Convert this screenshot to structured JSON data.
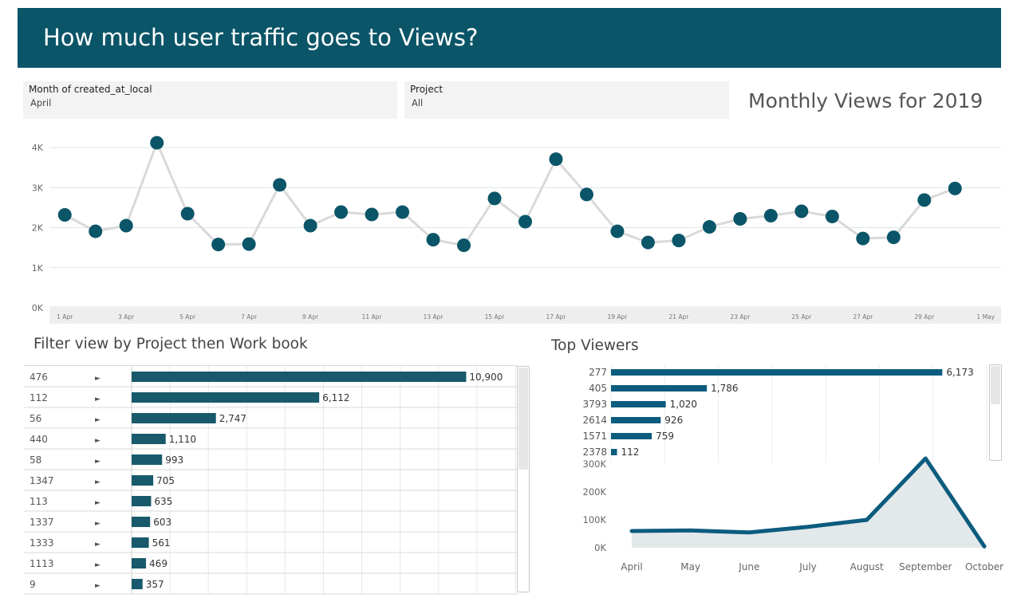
{
  "header": {
    "title": "How much user traffic goes to Views?"
  },
  "filters": [
    {
      "label": "Month of created_at_local",
      "value": "April"
    },
    {
      "label": "Project",
      "value": "All"
    }
  ],
  "monthly": {
    "title": "Monthly Views for 2019",
    "chart_data": {
      "type": "line",
      "x": [
        1,
        2,
        3,
        4,
        5,
        6,
        7,
        8,
        9,
        10,
        11,
        12,
        13,
        14,
        15,
        16,
        17,
        18,
        19,
        20,
        21,
        22,
        23,
        24,
        25,
        26,
        27,
        28,
        29,
        30
      ],
      "values": [
        2320,
        1910,
        2050,
        4120,
        2350,
        1580,
        1590,
        3070,
        2050,
        2390,
        2330,
        2390,
        1700,
        1560,
        2730,
        2150,
        3710,
        2830,
        1910,
        1630,
        1680,
        2020,
        2220,
        2300,
        2410,
        2280,
        1730,
        1760,
        2690,
        2980
      ],
      "xlim": [
        0.5,
        31.5
      ],
      "ylim": [
        0,
        4500
      ],
      "y_ticks": [
        0,
        1000,
        2000,
        3000,
        4000
      ],
      "y_tick_labels": [
        "0K",
        "1K",
        "2K",
        "3K",
        "4K"
      ],
      "x_tick_positions": [
        1,
        3,
        5,
        7,
        9,
        11,
        13,
        15,
        17,
        19,
        21,
        23,
        25,
        27,
        29,
        31
      ],
      "x_tick_labels": [
        "1 Apr",
        "3 Apr",
        "5 Apr",
        "7 Apr",
        "9 Apr",
        "11 Apr",
        "13 Apr",
        "15 Apr",
        "17 Apr",
        "19 Apr",
        "21 Apr",
        "23 Apr",
        "25 Apr",
        "27 Apr",
        "29 Apr",
        "1 May"
      ],
      "colors": {
        "line": "#d9d9d9",
        "marker": "#0b5568",
        "plot_bg": "#ffffff",
        "axis_band": "#eeeeee"
      }
    }
  },
  "projects": {
    "title": "Filter view by Project then Work book",
    "chart_data": {
      "type": "bar",
      "orientation": "horizontal",
      "categories": [
        "476",
        "112",
        "56",
        "440",
        "58",
        "1347",
        "113",
        "1337",
        "1333",
        "1113",
        "9"
      ],
      "values": [
        10900,
        6112,
        2747,
        1110,
        993,
        705,
        635,
        603,
        561,
        469,
        357
      ],
      "value_labels": [
        "10,900",
        "6,112",
        "2,747",
        "1,110",
        "993",
        "705",
        "635",
        "603",
        "561",
        "469",
        "357"
      ],
      "expand_glyph": "►",
      "xlim": [
        0,
        12500
      ],
      "grid_ticks": [
        0,
        1250,
        2500,
        3750,
        5000,
        6250,
        7500,
        8750,
        10000,
        11250,
        12500
      ],
      "colors": {
        "bar": "#185a6b"
      }
    }
  },
  "top_viewers": {
    "title": "Top Viewers",
    "chart_data": {
      "type": "bar",
      "orientation": "horizontal",
      "categories": [
        "277",
        "405",
        "3793",
        "2614",
        "1571",
        "2378"
      ],
      "values": [
        6173,
        1786,
        1020,
        926,
        759,
        112
      ],
      "value_labels": [
        "6,173",
        "1,786",
        "1,020",
        "926",
        "759",
        "112"
      ],
      "xlim": [
        0,
        7000
      ],
      "grid_ticks": [
        0,
        1000,
        2000,
        3000,
        4000,
        5000,
        6000,
        7000
      ],
      "colors": {
        "bar": "#0b5c7e"
      }
    }
  },
  "area": {
    "chart_data": {
      "type": "area",
      "categories": [
        "April",
        "May",
        "June",
        "July",
        "August",
        "September",
        "October"
      ],
      "values": [
        60000,
        62000,
        55000,
        75000,
        100000,
        320000,
        5000
      ],
      "ylim": [
        0,
        300000
      ],
      "y_ticks": [
        0,
        100000,
        200000,
        300000
      ],
      "y_tick_labels": [
        "0K",
        "100K",
        "200K",
        "300K"
      ],
      "colors": {
        "line": "#0b5c7e",
        "fill": "#e3e8ea"
      }
    }
  }
}
